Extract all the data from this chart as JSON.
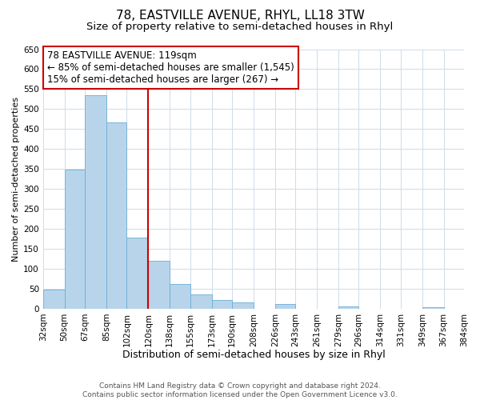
{
  "title": "78, EASTVILLE AVENUE, RHYL, LL18 3TW",
  "subtitle": "Size of property relative to semi-detached houses in Rhyl",
  "xlabel": "Distribution of semi-detached houses by size in Rhyl",
  "ylabel": "Number of semi-detached properties",
  "bar_edges": [
    32,
    50,
    67,
    85,
    102,
    120,
    138,
    155,
    173,
    190,
    208,
    226,
    243,
    261,
    279,
    296,
    314,
    331,
    349,
    367,
    384
  ],
  "bar_heights": [
    47,
    349,
    535,
    466,
    178,
    119,
    62,
    35,
    22,
    15,
    0,
    12,
    0,
    0,
    5,
    0,
    0,
    0,
    3,
    0
  ],
  "tick_labels": [
    "32sqm",
    "50sqm",
    "67sqm",
    "85sqm",
    "102sqm",
    "120sqm",
    "138sqm",
    "155sqm",
    "173sqm",
    "190sqm",
    "208sqm",
    "226sqm",
    "243sqm",
    "261sqm",
    "279sqm",
    "296sqm",
    "314sqm",
    "331sqm",
    "349sqm",
    "367sqm",
    "384sqm"
  ],
  "bar_color": "#b8d4ea",
  "bar_edge_color": "#6aaed6",
  "property_line_x": 120,
  "property_line_color": "#cc0000",
  "annotation_line1": "78 EASTVILLE AVENUE: 119sqm",
  "annotation_line2": "← 85% of semi-detached houses are smaller (1,545)",
  "annotation_line3": "15% of semi-detached houses are larger (267) →",
  "ylim": [
    0,
    650
  ],
  "yticks": [
    0,
    50,
    100,
    150,
    200,
    250,
    300,
    350,
    400,
    450,
    500,
    550,
    600,
    650
  ],
  "grid_color": "#d0dce8",
  "background_color": "#ffffff",
  "footer_text": "Contains HM Land Registry data © Crown copyright and database right 2024.\nContains public sector information licensed under the Open Government Licence v3.0.",
  "annotation_fontsize": 8.5,
  "title_fontsize": 11,
  "subtitle_fontsize": 9.5,
  "xlabel_fontsize": 9,
  "ylabel_fontsize": 8,
  "tick_fontsize": 7.5,
  "footer_fontsize": 6.5
}
